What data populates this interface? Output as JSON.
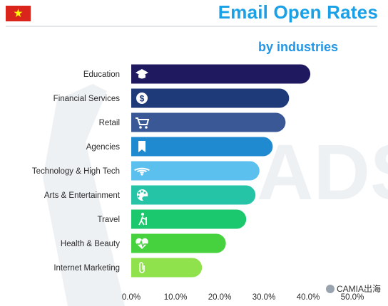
{
  "header": {
    "title": "Email Open Rates",
    "subtitle": "by industries",
    "flag_colors": {
      "field": "#da251d",
      "star": "#ffff00"
    }
  },
  "watermark": {
    "text": "CAMIA出海",
    "logo_letters": "ADSC"
  },
  "chart_data": {
    "type": "bar",
    "orientation": "horizontal",
    "categories": [
      "Education",
      "Financial Services",
      "Retail",
      "Agencies",
      "Technology & High Tech",
      "Arts & Entertainment",
      "Travel",
      "Health & Beauty",
      "Internet Marketing"
    ],
    "values": [
      40.5,
      35.7,
      34.9,
      32.0,
      29.0,
      28.1,
      26.0,
      21.4,
      16.0
    ],
    "icons": [
      "graduation-cap-icon",
      "dollar-coin-icon",
      "shopping-cart-icon",
      "bookmark-icon",
      "wifi-icon",
      "paint-palette-icon",
      "hiker-icon",
      "heart-pulse-icon",
      "paperclip-icon"
    ],
    "colors": [
      "#1f1960",
      "#1f3a78",
      "#3a5796",
      "#1f8ad0",
      "#5cc0ef",
      "#26c4a7",
      "#1cc86e",
      "#46d13f",
      "#8fe24b"
    ],
    "xlim": [
      0,
      50
    ],
    "xticks": [
      "0.0%",
      "10.0%",
      "20.0%",
      "30.0%",
      "40.0%",
      "50.0%"
    ],
    "xlabel": "",
    "ylabel": "",
    "grid": false,
    "legend": "none"
  }
}
